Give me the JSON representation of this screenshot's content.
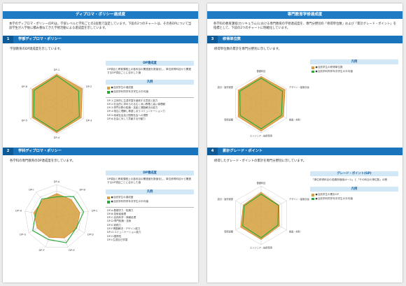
{
  "colors": {
    "header": "#1f7bc4",
    "section": "#1a74bb",
    "student": "#d4a03c",
    "average": "#28a83a",
    "grid": "#b0b0b0"
  },
  "left": {
    "header": "ディプロマ・ポリシー達成度",
    "intro": "本学のディプロマ・ポリシー(DP)は、学部レベルと学科ごとの2段階で設定しています。下段の2つのチャートは、その各DPについて当該学生が入学後に積み重ねてきた学修活動による達成度を示しています。",
    "sec1": {
      "num": "1",
      "title": "学部ディプロマ・ポリシー",
      "desc": "学部教育のDP達成度を示しています。",
      "info_title": "DP達成度",
      "info_text": "DP項目と教育課程上の各科目の関連度を数値化し、単位修得科目から関連するDP項目ごとに合計した値",
      "legend_title": "凡例",
      "legend": [
        "●当該学生の達成度",
        "●当該学科同学年次学生の平均値"
      ],
      "items": [
        "DP-1:主体的に生涯学習を継続する意欲と能力",
        "DP-2:社会的に求められる広く深い教養と高い倫理観",
        "DP-3:専門分野の知識・技能と課題解決の能力",
        "DP-4:相互に理解し尊重しあうコミュニケーション力",
        "DP-5:地域社会及び国際社会への視野",
        "DP-6:社会に対して貢献する行動力"
      ]
    },
    "sec2": {
      "num": "2",
      "title": "学科ディプロマ・ポリシー",
      "desc": "各学科の専門教育のDP達成度を示しています。",
      "info_title": "DP達成度",
      "info_text": "DP項目と教育課程上の各科目の関連度を数値化し、単位修得科目から関連するDP項目ごとに合計した値",
      "legend_title": "凡例",
      "legend": [
        "●当該学生の達成度",
        "●当該学科同学年次学生の平均値"
      ],
      "items": [
        "DP-A:基礎学力・知識力",
        "DP-B:技術者倫理",
        "DP-C:自然科学・情報処理",
        "DP-D:専門知識・技術",
        "DP-E:実践力",
        "DP-F:問題解決・デザイン能力",
        "DP-G:コミュニケーション能力",
        "DP-H:国際性",
        "DP-I:生涯自己学習"
      ]
    }
  },
  "right": {
    "header": "専門教育学修達成度",
    "intro": "各学科の教育課程(カリキュラム)における専門教育の学修達成度を、専門分野別の「修得単位数」および「累計グレード・ポイント」を指標として、下段の2つのチャートに明確化しています。",
    "sec3": {
      "num": "3",
      "title": "修得単位数",
      "desc": "修得単位数の累計を専門分野別に示しています。",
      "legend_title": "凡例",
      "legend": [
        "●当該学生の修得単位数",
        "●当該学科同学年次学生の平均値"
      ]
    },
    "sec4": {
      "num": "4",
      "title": "累計グレード・ポイント",
      "desc": "修得したグレード・ポイントの累計を専門分野別に示しています。",
      "info_title": "グレード・ポイント(GP)",
      "info_text": "「単位修得科目の成績評価値(4〜1)」と「その科目の単位数」の積",
      "legend_title": "凡例",
      "legend": [
        "●当該学生の累計GP",
        "●当該学科同学年次学生の平均値"
      ]
    },
    "axes_34": [
      "基礎科目",
      "デザイン・建築計画",
      "構造・材料",
      "エンジニア・技術環境",
      "環境設備",
      "設計・製作実習"
    ]
  },
  "chart_data": [
    {
      "type": "radar",
      "axes": [
        "DP-1",
        "DP-2",
        "DP-3",
        "DP-4",
        "DP-5",
        "DP-6"
      ],
      "series": [
        {
          "values": [
            0.95,
            0.96,
            0.92,
            0.95,
            0.92,
            0.92
          ]
        },
        {
          "values": [
            0.9,
            0.82,
            0.85,
            0.9,
            0.86,
            0.85
          ]
        }
      ]
    },
    {
      "type": "radar",
      "axes": [
        "DP-A",
        "DP-B",
        "DP-C",
        "DP-D",
        "DP-E",
        "DP-F",
        "DP-G",
        "DP-H",
        "DP-I"
      ],
      "series": [
        {
          "values": [
            0.72,
            0.7,
            0.73,
            0.72,
            0.7,
            0.68,
            0.7,
            0.72,
            0.68
          ]
        },
        {
          "values": [
            0.62,
            0.82,
            0.85,
            0.7,
            0.86,
            0.75,
            0.86,
            0.66,
            0.72
          ]
        }
      ]
    },
    {
      "type": "radar",
      "axes": [
        "基礎科目",
        "デザイン・建築計画",
        "構造・材料",
        "エンジニア・技術環境",
        "環境設備",
        "設計・製作実習"
      ],
      "series": [
        {
          "values": [
            0.92,
            0.94,
            0.88,
            0.94,
            0.9,
            0.9
          ]
        },
        {
          "values": [
            0.86,
            0.84,
            0.8,
            0.86,
            0.82,
            0.84
          ]
        }
      ]
    },
    {
      "type": "radar",
      "axes": [
        "基礎科目",
        "デザイン・建築計画",
        "構造・材料",
        "エンジニア・技術環境",
        "環境設備",
        "設計・製作実習"
      ],
      "series": [
        {
          "values": [
            0.78,
            0.7,
            0.72,
            0.82,
            0.8,
            0.7
          ]
        },
        {
          "values": [
            0.72,
            0.68,
            0.66,
            0.76,
            0.72,
            0.66
          ]
        }
      ]
    }
  ]
}
